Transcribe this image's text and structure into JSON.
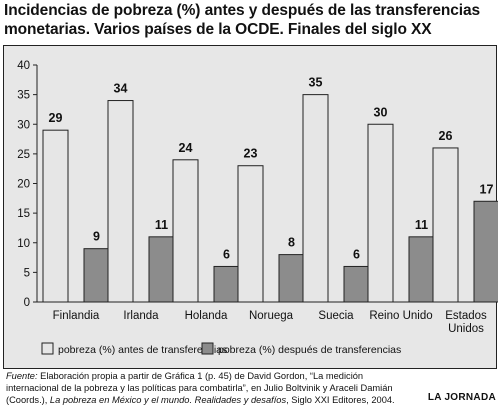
{
  "title": "Incidencias de pobreza (%) antes y después de las transferencias monetarias. Varios países de la OCDE. Finales del siglo XX",
  "chart_data": {
    "type": "bar",
    "categories": [
      "Finlandia",
      "Irlanda",
      "Holanda",
      "Noruega",
      "Suecia",
      "Reino Unido",
      [
        "Estados",
        "Unidos"
      ]
    ],
    "series": [
      {
        "name": "pobreza (%) antes de transferencias",
        "color": "#e6e6e6",
        "values": [
          29,
          34,
          24,
          23,
          35,
          30,
          26
        ]
      },
      {
        "name": "pobreza (%) después de transferencias",
        "color": "#8c8c8c",
        "values": [
          9,
          11,
          6,
          8,
          6,
          11,
          17
        ]
      }
    ],
    "yticks": [
      0,
      5,
      10,
      15,
      20,
      25,
      30,
      35,
      40
    ],
    "ylim": [
      0,
      40
    ],
    "grid": false,
    "legend_position": "bottom"
  },
  "footer": {
    "label": "Fuente:",
    "line1": " Elaboración propia a partir de Gráfica 1 (p. 45) de David Gordon, “La medición",
    "line2": "internacional de la pobreza y las políticas para combatirla”, en Julio Boltvinik y Araceli Damián",
    "line3_a": "(Coords.), ",
    "line3_italic": "La pobreza en México y el mundo. Realidades y desafíos",
    "line3_b": ", Siglo XXI Editores, 2004."
  },
  "brand": "LA JORNADA"
}
